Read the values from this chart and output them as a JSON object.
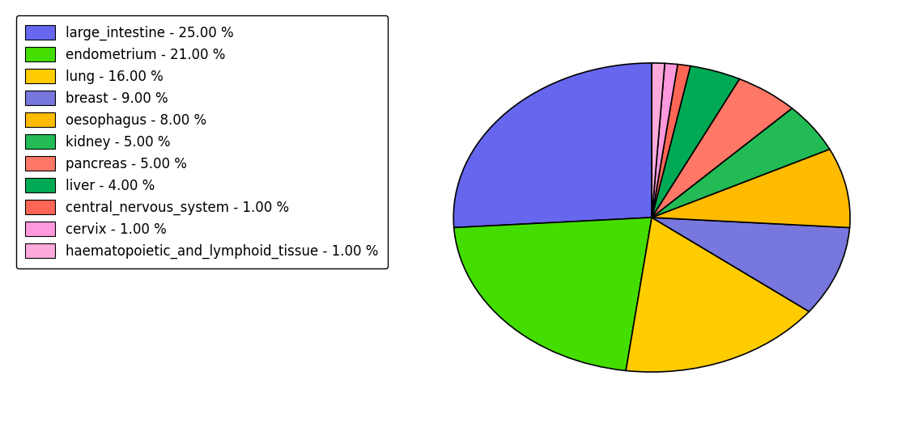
{
  "labels": [
    "large_intestine",
    "endometrium",
    "lung",
    "breast",
    "oesophagus",
    "kidney",
    "pancreas",
    "liver",
    "central_nervous_system",
    "cervix",
    "haematopoietic_and_lymphoid_tissue"
  ],
  "values": [
    25,
    21,
    16,
    9,
    8,
    5,
    5,
    4,
    1,
    1,
    1
  ],
  "colors": [
    "#6666ee",
    "#44dd00",
    "#ffcc00",
    "#7777dd",
    "#ffbb00",
    "#22bb55",
    "#ff7766",
    "#00aa55",
    "#ff6655",
    "#ff99dd",
    "#ffaadd"
  ],
  "legend_labels": [
    "large_intestine - 25.00 %",
    "endometrium - 21.00 %",
    "lung - 16.00 %",
    "breast - 9.00 %",
    "oesophagus - 8.00 %",
    "kidney - 5.00 %",
    "pancreas - 5.00 %",
    "liver - 4.00 %",
    "central_nervous_system - 1.00 %",
    "cervix - 1.00 %",
    "haematopoietic_and_lymphoid_tissue - 1.00 %"
  ],
  "startangle": 90,
  "legend_fontsize": 12
}
